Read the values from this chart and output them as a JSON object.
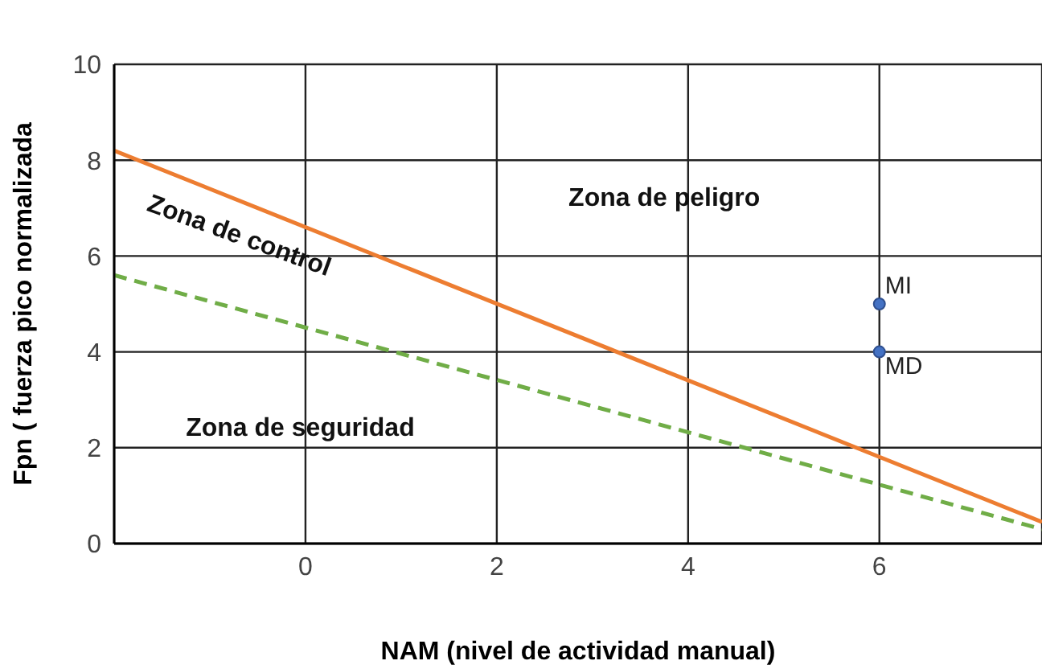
{
  "chart_data": {
    "type": "line",
    "xlabel": "NAM (nivel de actividad manual)",
    "ylabel": "Fpn ( fuerza pico normalizada",
    "x": [
      -2,
      7.7
    ],
    "series": [
      {
        "color": "#ed7d31",
        "values": [
          8.2,
          0.45
        ],
        "line_style": "solid"
      },
      {
        "color": "#70ad47",
        "values": [
          5.6,
          0.3
        ],
        "line_style": "dashed"
      },
      {
        "type": "scatter",
        "name": "MI",
        "color": "#4472c4",
        "x": [
          6
        ],
        "values": [
          5
        ]
      },
      {
        "type": "scatter",
        "name": "MD",
        "color": "#4472c4",
        "x": [
          6
        ],
        "values": [
          4
        ]
      }
    ],
    "xlim": [
      -2,
      7.7
    ],
    "xticks": [
      0,
      2,
      4,
      6
    ],
    "ylim": [
      0,
      10
    ],
    "yticks": [
      0,
      2,
      4,
      6,
      8,
      10
    ],
    "grid": true,
    "legend": false,
    "annotations": [
      "Zona de peligro",
      "Zona de control",
      "Zona de seguridad"
    ]
  }
}
